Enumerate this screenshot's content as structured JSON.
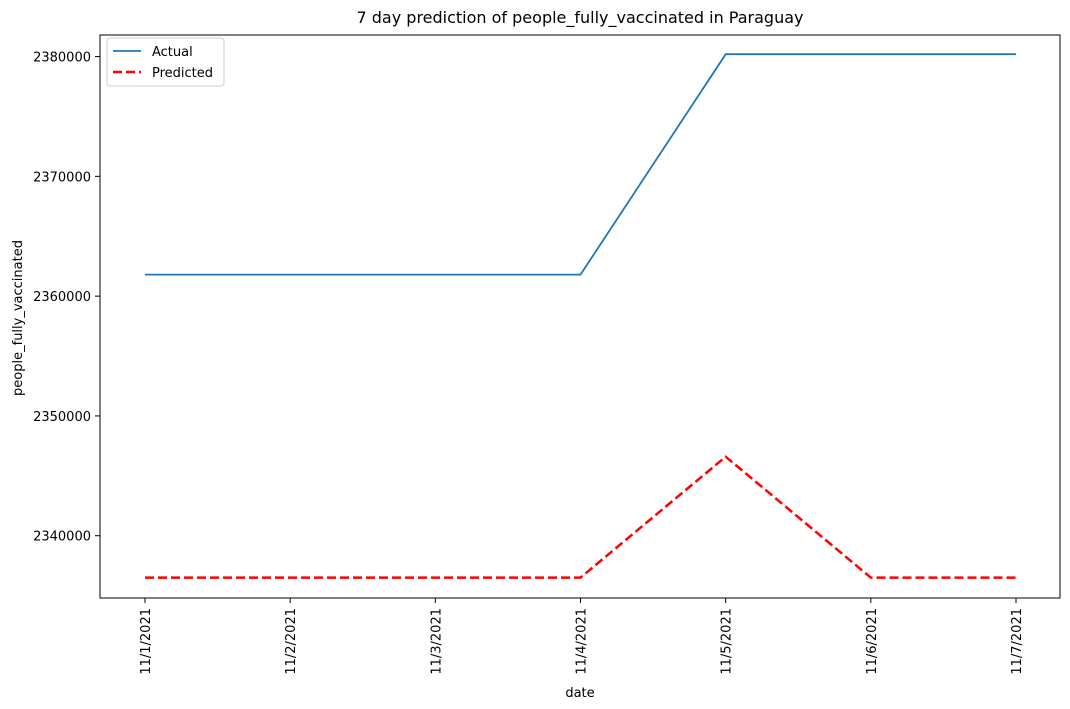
{
  "chart_data": {
    "type": "line",
    "title": "7 day prediction of people_fully_vaccinated in Paraguay",
    "xlabel": "date",
    "ylabel": "people_fully_vaccinated",
    "categories": [
      "11/1/2021",
      "11/2/2021",
      "11/3/2021",
      "11/4/2021",
      "11/5/2021",
      "11/6/2021",
      "11/7/2021"
    ],
    "series": [
      {
        "name": "Actual",
        "color": "#1f77b4",
        "style": "solid",
        "values": [
          2361800,
          2361800,
          2361800,
          2361800,
          2380200,
          2380200,
          2380200
        ]
      },
      {
        "name": "Predicted",
        "color": "#ff0000",
        "style": "dashed",
        "values": [
          2336500,
          2336500,
          2336500,
          2336500,
          2346600,
          2336500,
          2336500
        ]
      }
    ],
    "ylim": [
      2334800,
      2381800
    ],
    "yticks": [
      2340000,
      2350000,
      2360000,
      2370000,
      2380000
    ],
    "ytick_labels": [
      "2340000",
      "2350000",
      "2360000",
      "2370000",
      "2380000"
    ],
    "legend": "top-left",
    "grid": false
  }
}
